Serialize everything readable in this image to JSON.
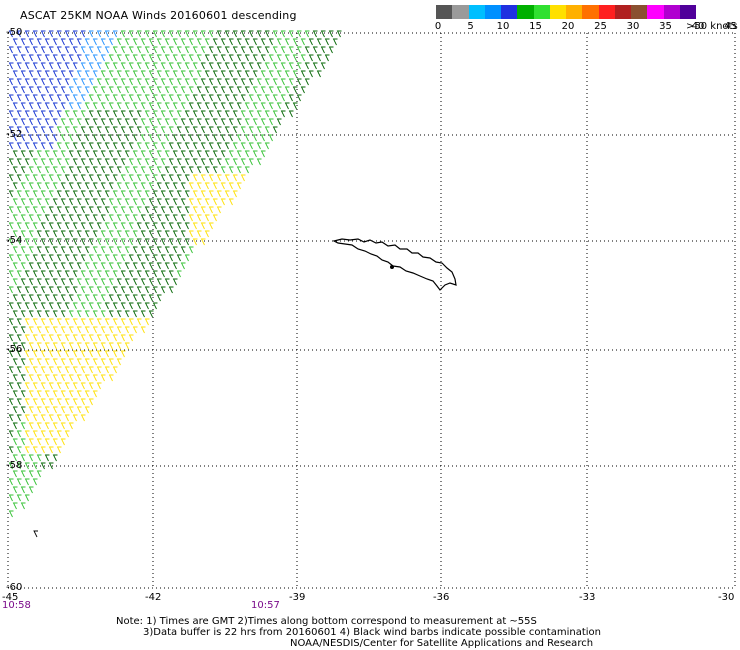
{
  "title": "ASCAT 25KM NOAA Winds 20160601 descending",
  "colorbar": {
    "labels": [
      "0",
      "5",
      "10",
      "15",
      "20",
      "25",
      "30",
      "35",
      "40",
      "45",
      ">50 knots"
    ],
    "colors": [
      "#555555",
      "#9a9a9a",
      "#00bfff",
      "#0090ff",
      "#2030e0",
      "#00b000",
      "#30e030",
      "#ffe000",
      "#ffb000",
      "#ff7000",
      "#ff2020",
      "#b02020",
      "#8a5030",
      "#ff00ff",
      "#b000d0",
      "#50009a"
    ]
  },
  "map": {
    "lat_labels": [
      "-50",
      "-52",
      "-54",
      "-56",
      "-58",
      "-60"
    ],
    "lon_labels": [
      "-45",
      "-42",
      "-39",
      "-36",
      "-33",
      "-30"
    ],
    "time_labels": [
      {
        "text": "10:58"
      },
      {
        "text": "10:57"
      }
    ],
    "barb_colors": {
      "blue": "#1030d0",
      "lightblue": "#2090ff",
      "green": "#30c030",
      "darkgreen": "#006400",
      "yellow": "#ffe000"
    }
  },
  "notes": {
    "line1": "Note: 1) Times are GMT 2)Times along bottom correspond to measurement at ~55S",
    "line2": "3)Data buffer is 22 hrs from 20160601 4) Black wind barbs indicate possible contamination",
    "line3": "NOAA/NESDIS/Center for Satellite Applications and Research"
  }
}
